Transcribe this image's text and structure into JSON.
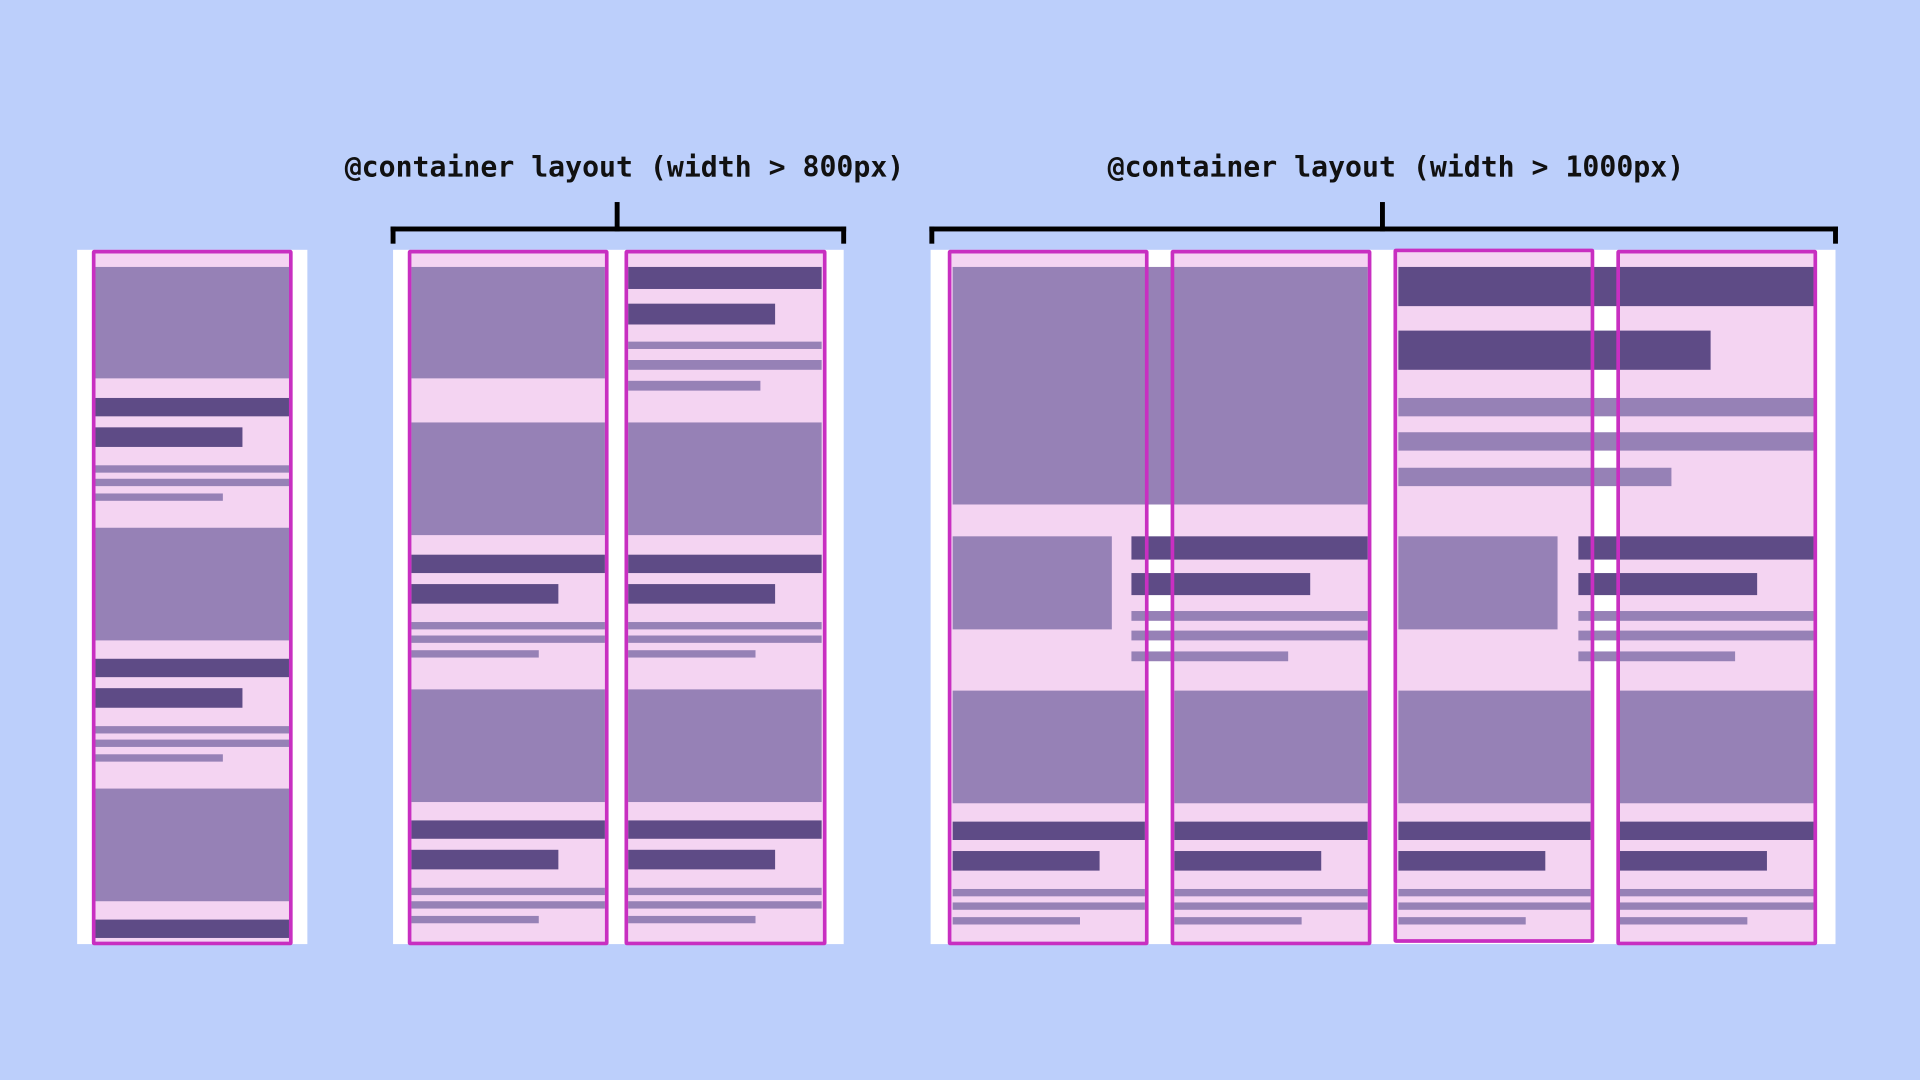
{
  "labels": {
    "container_800": "@container layout (width > 800px)",
    "container_1000": "@container layout (width > 1000px)"
  },
  "colors": {
    "background": "#bccffb",
    "panel": "#ffffff",
    "card_fill": "#f4d4f2",
    "card_border": "#c82fc1",
    "image_block": "#9681b6",
    "heading_block": "#5e4b86",
    "text_line": "#9681b6"
  }
}
